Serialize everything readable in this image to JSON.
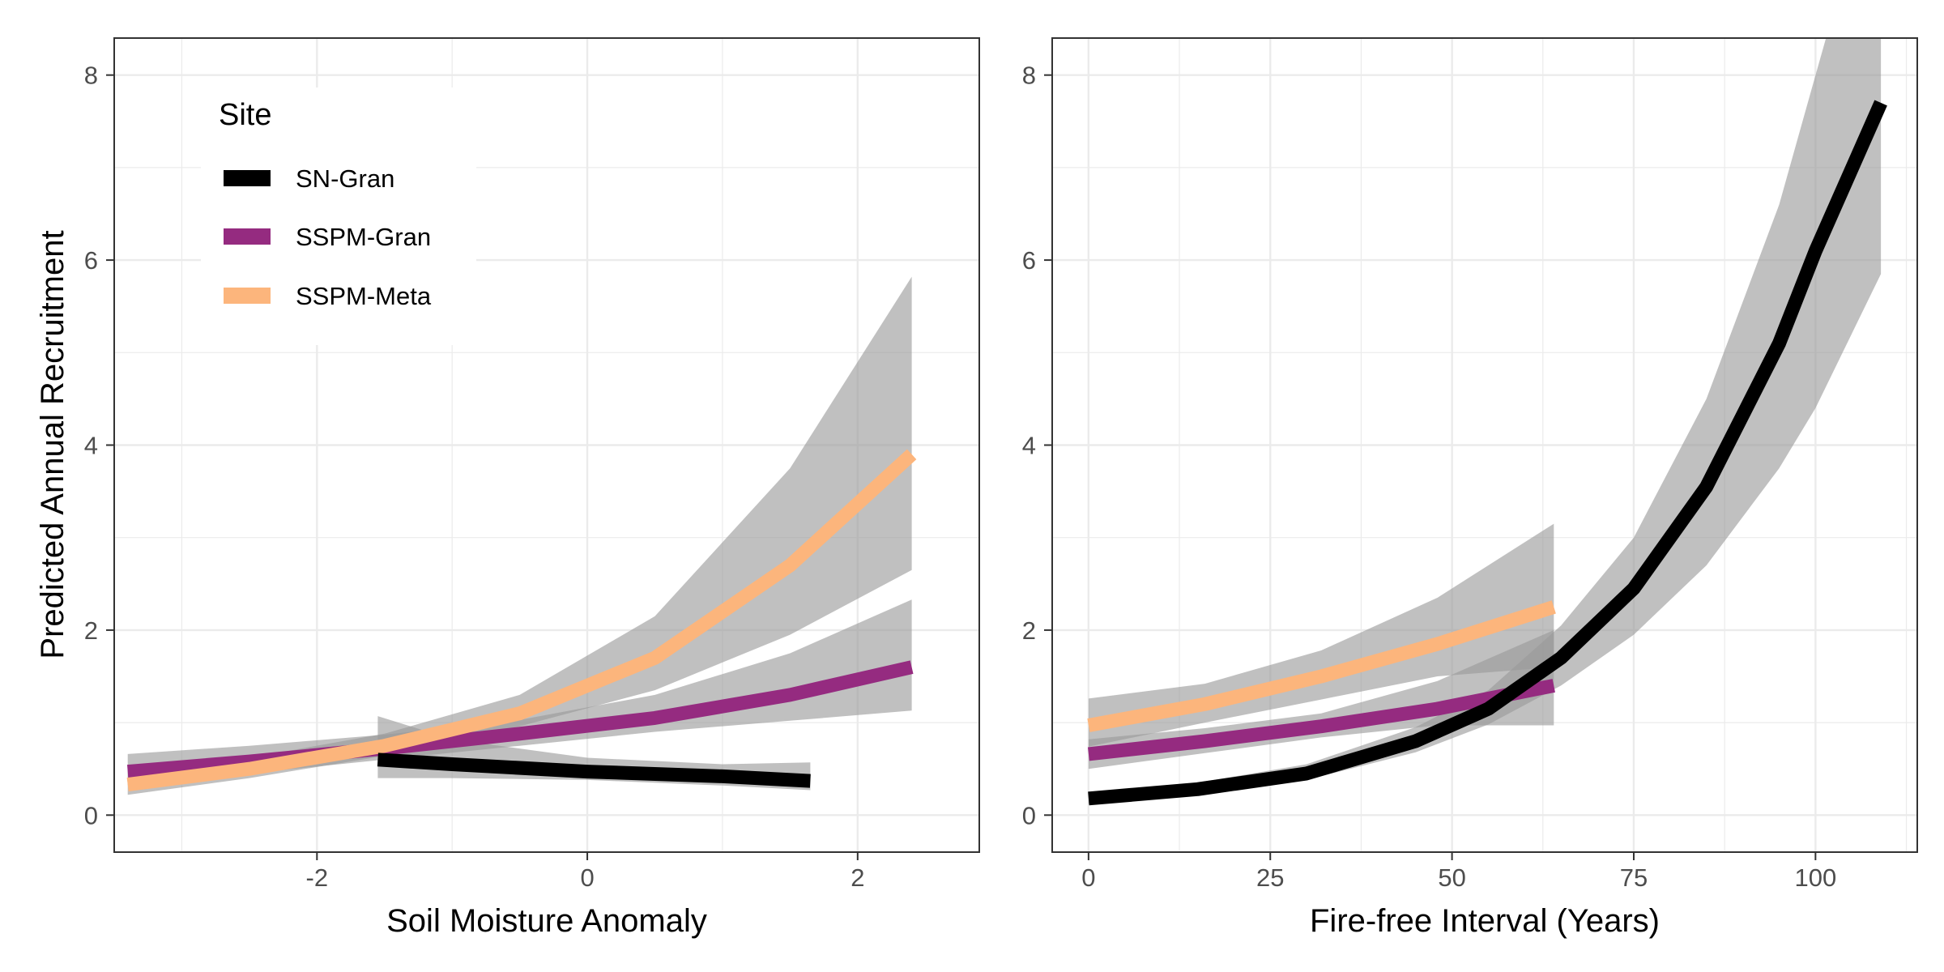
{
  "figure": {
    "ylabel": "Predicted Annual Recruitment"
  },
  "legend": {
    "title": "Site",
    "placement": "top-left",
    "items": [
      {
        "label": "SN-Gran",
        "color": "#000000"
      },
      {
        "label": "SSPM-Gran",
        "color": "#952B80"
      },
      {
        "label": "SSPM-Meta",
        "color": "#FCB57C"
      }
    ]
  },
  "style": {
    "ribbon_color": "#999999",
    "grid_color": "#EBEBEB",
    "panel_border": "#333333"
  },
  "chart_data": [
    {
      "type": "line",
      "xlabel": "Soil Moisture Anomaly",
      "ylabel": "Predicted Annual Recruitment",
      "xlim": [
        -3.5,
        2.9
      ],
      "ylim": [
        -0.4,
        8.4
      ],
      "xticks": [
        -2,
        0,
        2
      ],
      "xtick_labels": [
        "-2",
        "0",
        "2"
      ],
      "yticks": [
        0,
        2,
        4,
        6,
        8
      ],
      "ytick_labels": [
        "0",
        "2",
        "4",
        "6",
        "8"
      ],
      "grid": true,
      "series": [
        {
          "name": "SSPM-Gran",
          "color": "#952B80",
          "x": [
            -3.4,
            -2.5,
            -1.5,
            -0.5,
            0.5,
            1.5,
            2.4
          ],
          "y": [
            0.47,
            0.58,
            0.72,
            0.88,
            1.05,
            1.3,
            1.6
          ],
          "ymin": [
            0.33,
            0.45,
            0.6,
            0.75,
            0.9,
            1.02,
            1.13
          ],
          "ymax": [
            0.66,
            0.75,
            0.87,
            1.03,
            1.3,
            1.75,
            2.33
          ]
        },
        {
          "name": "SSPM-Meta",
          "color": "#FCB57C",
          "x": [
            -3.4,
            -2.5,
            -1.5,
            -0.5,
            0.5,
            1.5,
            2.4
          ],
          "y": [
            0.33,
            0.5,
            0.75,
            1.1,
            1.7,
            2.7,
            3.9
          ],
          "ymin": [
            0.22,
            0.4,
            0.64,
            0.96,
            1.35,
            1.95,
            2.65
          ],
          "ymax": [
            0.5,
            0.62,
            0.88,
            1.3,
            2.15,
            3.75,
            5.82
          ]
        },
        {
          "name": "SN-Gran",
          "color": "#000000",
          "x": [
            -1.55,
            -1.0,
            0.0,
            1.0,
            1.65
          ],
          "y": [
            0.6,
            0.55,
            0.47,
            0.42,
            0.37
          ],
          "ymin": [
            0.4,
            0.4,
            0.38,
            0.32,
            0.27
          ],
          "ymax": [
            1.07,
            0.82,
            0.62,
            0.55,
            0.57
          ]
        }
      ]
    },
    {
      "type": "line",
      "xlabel": "Fire-free Interval (Years)",
      "ylabel": "",
      "xlim": [
        -5,
        114
      ],
      "ylim": [
        -0.4,
        8.4
      ],
      "xticks": [
        0,
        25,
        50,
        75,
        100
      ],
      "xtick_labels": [
        "0",
        "25",
        "50",
        "75",
        "100"
      ],
      "yticks": [
        0,
        2,
        4,
        6,
        8
      ],
      "ytick_labels": [
        "0",
        "2",
        "4",
        "6",
        "8"
      ],
      "grid": true,
      "series": [
        {
          "name": "SSPM-Gran",
          "color": "#952B80",
          "x": [
            0,
            16,
            32,
            48,
            64
          ],
          "y": [
            0.66,
            0.8,
            0.96,
            1.15,
            1.4
          ],
          "ymin": [
            0.5,
            0.67,
            0.84,
            0.97,
            0.97
          ],
          "ymax": [
            0.82,
            0.94,
            1.1,
            1.45,
            2.0
          ]
        },
        {
          "name": "SSPM-Meta",
          "color": "#FCB57C",
          "x": [
            0,
            16,
            32,
            48,
            64
          ],
          "y": [
            0.97,
            1.2,
            1.5,
            1.85,
            2.25
          ],
          "ymin": [
            0.74,
            1.0,
            1.25,
            1.5,
            1.6
          ],
          "ymax": [
            1.26,
            1.42,
            1.78,
            2.35,
            3.15
          ]
        },
        {
          "name": "SN-Gran",
          "color": "#000000",
          "x": [
            0,
            15,
            30,
            45,
            55,
            65,
            75,
            85,
            95,
            100,
            109
          ],
          "y": [
            0.18,
            0.28,
            0.45,
            0.8,
            1.15,
            1.7,
            2.45,
            3.55,
            5.1,
            6.1,
            7.7
          ],
          "ymin": [
            0.12,
            0.22,
            0.38,
            0.68,
            0.98,
            1.4,
            1.95,
            2.7,
            3.75,
            4.4,
            5.85
          ],
          "ymax": [
            0.25,
            0.35,
            0.55,
            0.95,
            1.35,
            2.05,
            3.0,
            4.5,
            6.6,
            8.0,
            10.5
          ]
        }
      ]
    }
  ]
}
